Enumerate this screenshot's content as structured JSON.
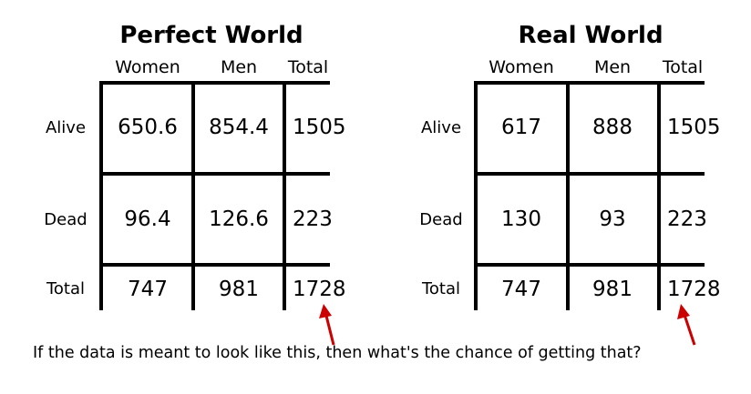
{
  "caption": "If the data is meant to look like this, then what's the chance of getting that?",
  "tables": [
    {
      "title": "Perfect World",
      "columns": [
        "Women",
        "Men",
        "Total"
      ],
      "rows": [
        {
          "label": "Alive",
          "values": [
            "650.6",
            "854.4",
            "1505"
          ]
        },
        {
          "label": "Dead",
          "values": [
            "96.4",
            "126.6",
            "223"
          ]
        },
        {
          "label": "Total",
          "values": [
            "747",
            "981",
            "1728"
          ]
        }
      ]
    },
    {
      "title": "Real World",
      "columns": [
        "Women",
        "Men",
        "Total"
      ],
      "rows": [
        {
          "label": "Alive",
          "values": [
            "617",
            "888",
            "1505"
          ]
        },
        {
          "label": "Dead",
          "values": [
            "130",
            "93",
            "223"
          ]
        },
        {
          "label": "Total",
          "values": [
            "747",
            "981",
            "1728"
          ]
        }
      ]
    }
  ],
  "colors": {
    "arrow": "#cc0000",
    "line": "#000000"
  }
}
